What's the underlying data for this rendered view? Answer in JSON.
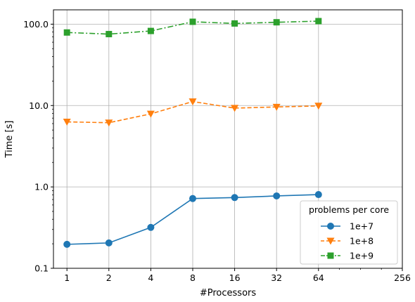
{
  "chart_data": {
    "type": "line",
    "xlabel": "#Processors",
    "ylabel": "Time [s]",
    "xscale": "log2",
    "yscale": "log10",
    "xlim": [
      0.8,
      256
    ],
    "ylim": [
      0.1,
      150
    ],
    "xticks": [
      1,
      2,
      4,
      8,
      16,
      32,
      64,
      256
    ],
    "xtick_labels": [
      "1",
      "2",
      "4",
      "8",
      "16",
      "32",
      "64",
      "256"
    ],
    "yticks": [
      0.1,
      1.0,
      10.0,
      100.0
    ],
    "ytick_labels": [
      "0.1",
      "1.0",
      "10.0",
      "100.0"
    ],
    "grid": true,
    "legend": {
      "title": "problems per core",
      "placement": "lower-right"
    },
    "x": [
      1,
      2,
      4,
      8,
      16,
      32,
      64
    ],
    "series": [
      {
        "name": "1e+7",
        "color": "#1f77b4",
        "marker": "circle",
        "linestyle": "solid",
        "values": [
          0.197,
          0.205,
          0.318,
          0.72,
          0.74,
          0.775,
          0.805
        ]
      },
      {
        "name": "1e+8",
        "color": "#ff7f0e",
        "marker": "triangle-down",
        "linestyle": "dashed",
        "values": [
          6.3,
          6.15,
          7.9,
          11.2,
          9.3,
          9.6,
          9.9
        ]
      },
      {
        "name": "1e+9",
        "color": "#2ca02c",
        "marker": "square",
        "linestyle": "dashdot",
        "values": [
          79.0,
          75.5,
          82.5,
          107.0,
          102.0,
          105.5,
          109.0
        ]
      }
    ]
  }
}
